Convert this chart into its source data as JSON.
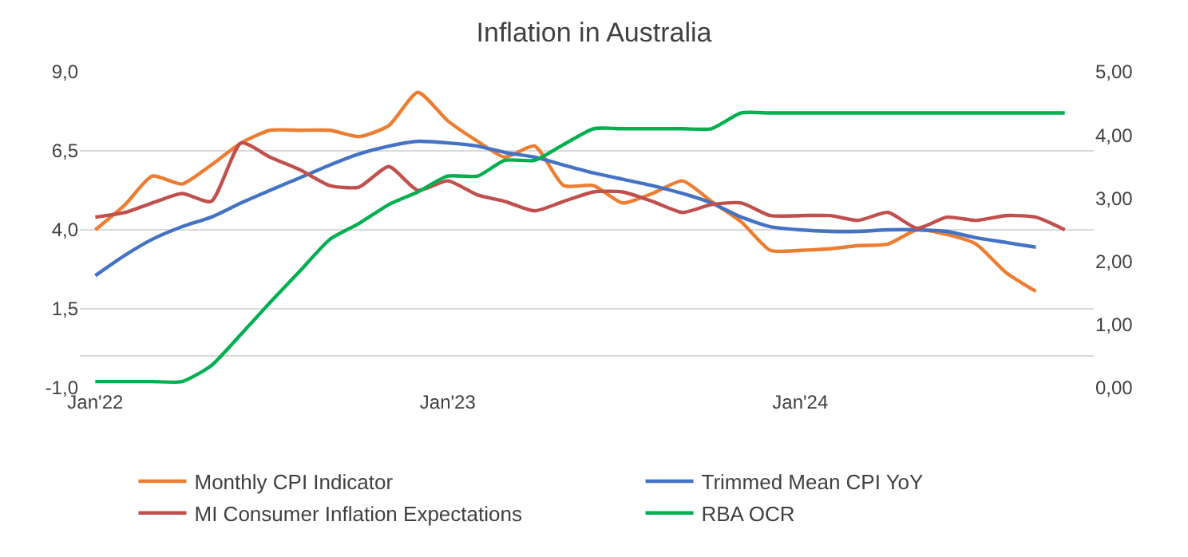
{
  "chart_data": {
    "type": "line",
    "title": "Inflation in Australia",
    "x": [
      "2022-01",
      "2022-02",
      "2022-03",
      "2022-04",
      "2022-05",
      "2022-06",
      "2022-07",
      "2022-08",
      "2022-09",
      "2022-10",
      "2022-11",
      "2022-12",
      "2023-01",
      "2023-02",
      "2023-03",
      "2023-04",
      "2023-05",
      "2023-06",
      "2023-07",
      "2023-08",
      "2023-09",
      "2023-10",
      "2023-11",
      "2023-12",
      "2024-01",
      "2024-02",
      "2024-03",
      "2024-04",
      "2024-05",
      "2024-06",
      "2024-07",
      "2024-08",
      "2024-09",
      "2024-10"
    ],
    "series": [
      {
        "name": "Monthly CPI Indicator",
        "color": "#ed7d31",
        "values": [
          4.0,
          4.8,
          5.7,
          5.45,
          6.05,
          6.75,
          7.15,
          7.15,
          7.15,
          6.95,
          7.3,
          8.35,
          7.45,
          6.8,
          6.3,
          6.65,
          5.4,
          5.4,
          4.85,
          5.15,
          5.55,
          4.9,
          4.25,
          3.35,
          3.35,
          3.4,
          3.5,
          3.55,
          4.0,
          3.85,
          3.55,
          2.65,
          2.05,
          null
        ]
      },
      {
        "name": "Trimmed Mean CPI YoY",
        "color": "#4472c4",
        "values": [
          2.55,
          3.2,
          3.7,
          4.1,
          4.4,
          4.85,
          5.25,
          5.65,
          6.05,
          6.4,
          6.65,
          6.8,
          6.75,
          6.65,
          6.45,
          6.3,
          6.05,
          5.8,
          5.6,
          5.4,
          5.15,
          4.85,
          4.4,
          4.1,
          4.0,
          3.95,
          3.95,
          4.0,
          4.0,
          3.95,
          3.75,
          3.6,
          3.45,
          null
        ]
      },
      {
        "name": "MI Consumer Inflation Expectations",
        "color": "#c0504d",
        "values": [
          4.4,
          4.55,
          4.85,
          5.15,
          4.9,
          6.75,
          6.3,
          5.9,
          5.4,
          5.35,
          6.0,
          5.25,
          5.55,
          5.1,
          4.9,
          4.6,
          4.9,
          5.2,
          5.2,
          4.9,
          4.55,
          4.8,
          4.85,
          4.45,
          4.45,
          4.45,
          4.3,
          4.55,
          4.05,
          4.4,
          4.3,
          4.45,
          4.4,
          4.0
        ]
      },
      {
        "name": "RBA OCR",
        "color": "#00b050",
        "axis": "y2",
        "values": [
          0.1,
          0.1,
          0.1,
          0.1,
          0.35,
          0.85,
          1.35,
          1.85,
          2.35,
          2.6,
          2.9,
          3.1,
          3.35,
          3.35,
          3.6,
          3.6,
          3.85,
          4.1,
          4.1,
          4.1,
          4.1,
          4.1,
          4.35,
          4.35,
          4.35,
          4.35,
          4.35,
          4.35,
          4.35,
          4.35,
          4.35,
          4.35,
          4.35,
          4.35
        ]
      }
    ],
    "xlim": [
      "2021-12-16",
      "2024-10-31"
    ],
    "xticks": [
      {
        "value": "2022-01",
        "label": "Jan'22"
      },
      {
        "value": "2023-01",
        "label": "Jan'23"
      },
      {
        "value": "2024-01",
        "label": "Jan'24"
      }
    ],
    "ylim": [
      -1,
      9
    ],
    "yticks": [
      {
        "value": -1,
        "label": "-1,0"
      },
      {
        "value": 1.5,
        "label": "1,5"
      },
      {
        "value": 4,
        "label": "4,0"
      },
      {
        "value": 6.5,
        "label": "6,5"
      },
      {
        "value": 9,
        "label": "9,0"
      }
    ],
    "y2lim": [
      0,
      5
    ],
    "y2ticks": [
      {
        "value": 0,
        "label": "0,00"
      },
      {
        "value": 1,
        "label": "1,00"
      },
      {
        "value": 2,
        "label": "2,00"
      },
      {
        "value": 3,
        "label": "3,00"
      },
      {
        "value": 4,
        "label": "4,00"
      },
      {
        "value": 5,
        "label": "5,00"
      }
    ],
    "grid": "y",
    "legend": "bottom",
    "marker": "none",
    "line_style": "solid"
  }
}
